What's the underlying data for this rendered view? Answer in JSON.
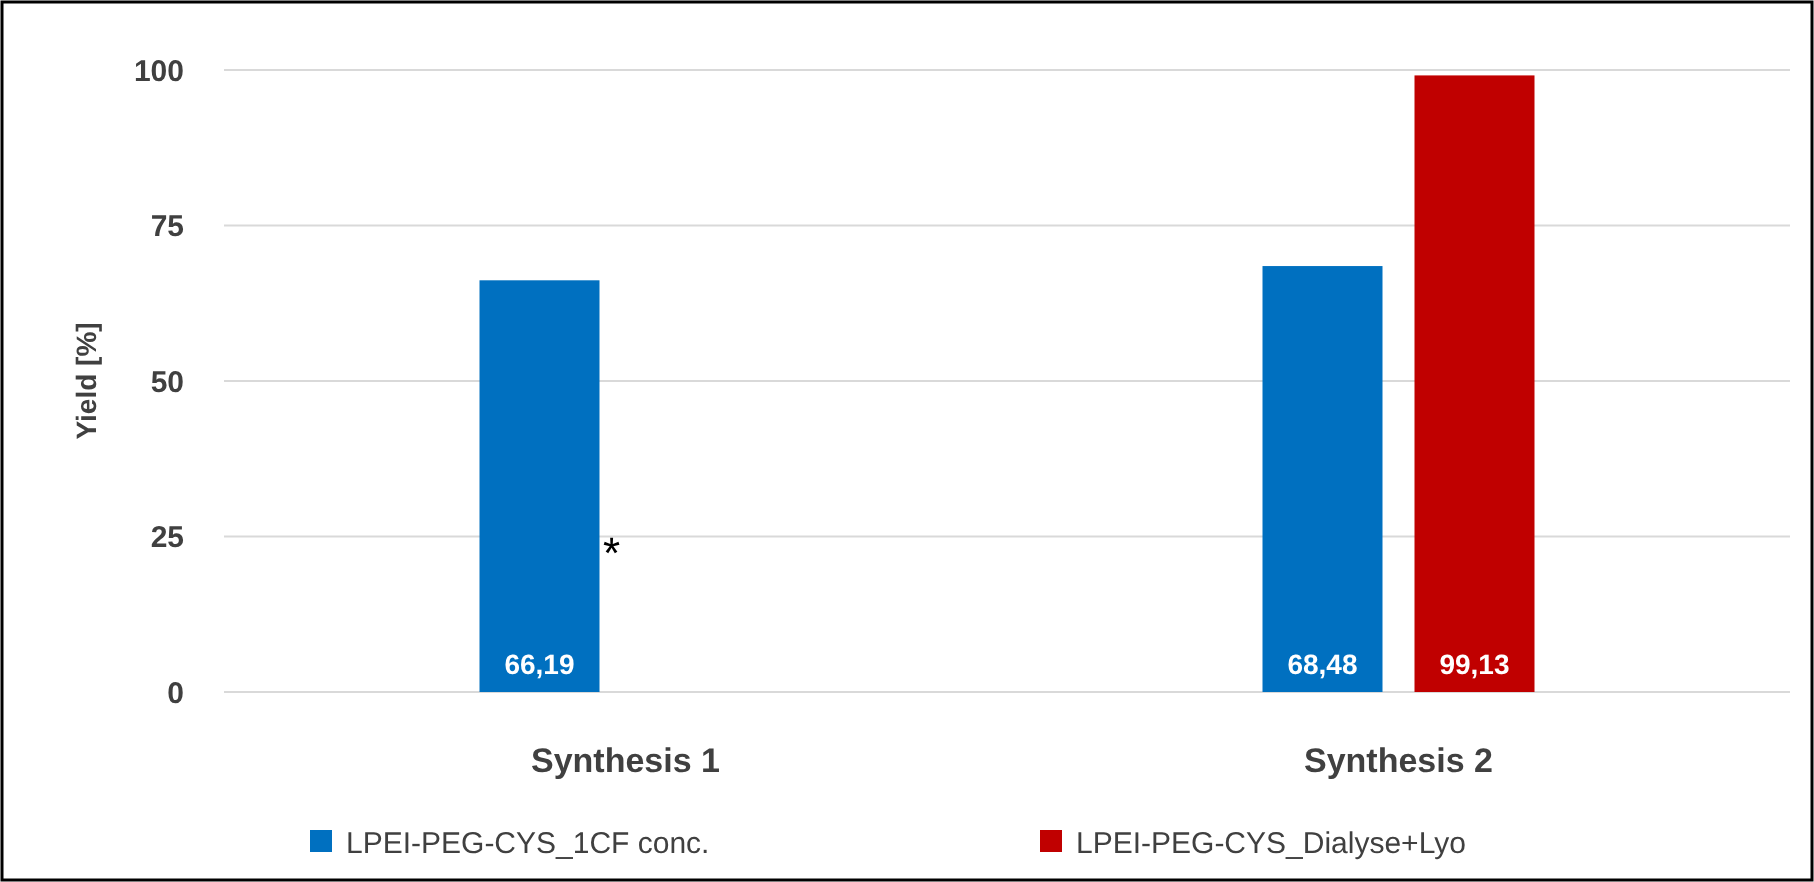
{
  "chart_data": {
    "type": "bar",
    "ylabel": "Yield [%]",
    "categories": [
      "Synthesis 1",
      "Synthesis 2"
    ],
    "series": [
      {
        "name": "LPEI-PEG-CYS_1CF conc.",
        "color": "#0070c0",
        "values": [
          66.19,
          68.48
        ],
        "value_labels": [
          "66,19",
          "68,48"
        ]
      },
      {
        "name": "LPEI-PEG-CYS_Dialyse+Lyo",
        "color": "#c00000",
        "values": [
          null,
          99.13
        ],
        "value_labels": [
          null,
          "99,13"
        ]
      }
    ],
    "ylim": [
      0,
      100
    ],
    "yticks": [
      0,
      25,
      50,
      75,
      100
    ],
    "grid": "y",
    "legend": "bottom",
    "annotations": [
      "*"
    ]
  }
}
